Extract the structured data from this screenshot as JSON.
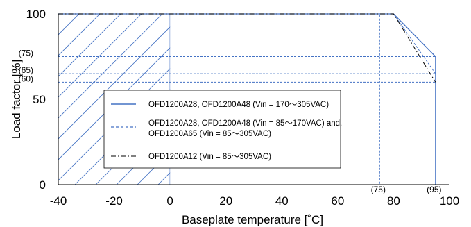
{
  "chart_data": {
    "type": "line",
    "title": "",
    "xlabel": "Baseplate temperature [˚C]",
    "ylabel": "Load factor [%]",
    "xlim": [
      -40,
      100
    ],
    "ylim": [
      0,
      100
    ],
    "x_ticks": [
      "-40",
      "-20",
      "0",
      "20",
      "40",
      "60",
      "80",
      "100"
    ],
    "y_ticks": [
      "0",
      "50",
      "100"
    ],
    "y_annotations": [
      "(75)",
      "(65)",
      "(60)"
    ],
    "x_annotations": [
      "(75)",
      "(95)"
    ],
    "grid": false,
    "legend_position": "center",
    "hatched_region": {
      "x": [
        -40,
        0
      ],
      "y": [
        0,
        100
      ]
    },
    "series": [
      {
        "name": "OFD1200A28, OFD1200A48 (Vin = 170～305VAC)",
        "style": "solid",
        "color": "#4472c4",
        "x": [
          -40,
          80,
          95,
          95
        ],
        "y": [
          100,
          100,
          75,
          0
        ]
      },
      {
        "name_lines": [
          "OFD1200A28, OFD1200A48 (Vin = 85～170VAC) and,",
          "OFD1200A65 (Vin = 85～305VAC)"
        ],
        "style": "dashed",
        "color": "#4472c4",
        "x": [
          -40,
          75,
          75
        ],
        "y": [
          100,
          100,
          0
        ],
        "x2": [
          -40,
          80,
          95
        ],
        "y2": [
          100,
          100,
          65
        ]
      },
      {
        "name": "OFD1200A12 (Vin = 85～305VAC)",
        "style": "dashdot",
        "color": "#000000",
        "x": [
          -40,
          80,
          95
        ],
        "y": [
          100,
          100,
          60
        ]
      }
    ],
    "reference_lines": [
      {
        "orientation": "horizontal",
        "y": 75,
        "x_range": [
          -40,
          95
        ],
        "style": "dashed"
      },
      {
        "orientation": "horizontal",
        "y": 65,
        "x_range": [
          -40,
          95
        ],
        "style": "dashed"
      },
      {
        "orientation": "horizontal",
        "y": 60,
        "x_range": [
          -40,
          95
        ],
        "style": "dashed"
      }
    ]
  }
}
